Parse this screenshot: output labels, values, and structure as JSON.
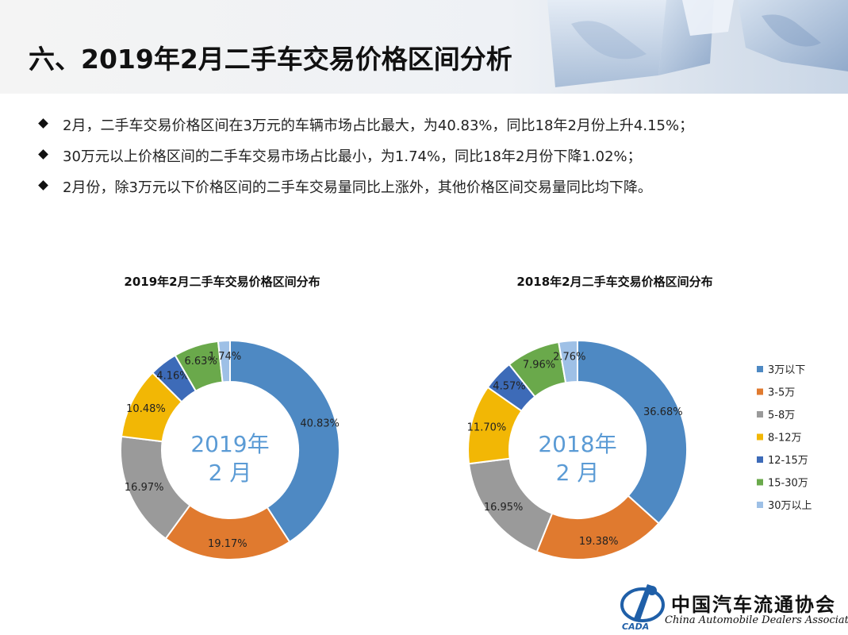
{
  "header": {
    "title": "六、2019年2月二手车交易价格区间分析"
  },
  "bullets": [
    "2月，二手车交易价格区间在3万元的车辆市场占比最大，为40.83%，同比18年2月份上升4.15%；",
    "30万元以上价格区间的二手车交易市场占比最小，为1.74%，同比18年2月份下降1.02%；",
    "2月份，除3万元以下价格区间的二手车交易量同比上涨外，其他价格区间交易量同比均下降。"
  ],
  "colors": {
    "3万以下": "#4e89c3",
    "3-5万": "#e07a2f",
    "5-8万": "#9a9a9a",
    "8-12万": "#f2b705",
    "12-15万": "#3d6bb8",
    "15-30万": "#6aa94b",
    "30万以上": "#9ec0e6"
  },
  "chart_data": [
    {
      "type": "pie",
      "donut": true,
      "title": "2019年2月二手车交易价格区间分布",
      "center_label": [
        "2019年",
        "2 月"
      ],
      "categories": [
        "3万以下",
        "3-5万",
        "5-8万",
        "8-12万",
        "12-15万",
        "15-30万",
        "30万以上"
      ],
      "values": [
        40.83,
        19.17,
        16.97,
        10.48,
        4.16,
        6.63,
        1.74
      ],
      "labels": [
        "40.83%",
        "19.17%",
        "16.97%",
        "10.48%",
        "4.16%",
        "6.63%",
        "1.74%"
      ]
    },
    {
      "type": "pie",
      "donut": true,
      "title": "2018年2月二手车交易价格区间分布",
      "center_label": [
        "2018年",
        "2 月"
      ],
      "categories": [
        "3万以下",
        "3-5万",
        "5-8万",
        "8-12万",
        "12-15万",
        "15-30万",
        "30万以上"
      ],
      "values": [
        36.68,
        19.38,
        16.95,
        11.7,
        4.57,
        7.96,
        2.76
      ],
      "labels": [
        "36.68%",
        "19.38%",
        "16.95%",
        "11.70%",
        "4.57%",
        "7.96%",
        "2.76%"
      ],
      "legend": {
        "position": "right",
        "entries": [
          "3万以下",
          "3-5万",
          "5-8万",
          "8-12万",
          "12-15万",
          "15-30万",
          "30万以上"
        ]
      }
    }
  ],
  "logo": {
    "cn": "中国汽车流通协会",
    "en": "China Automobile Dealers Association",
    "mark": "CADA"
  }
}
